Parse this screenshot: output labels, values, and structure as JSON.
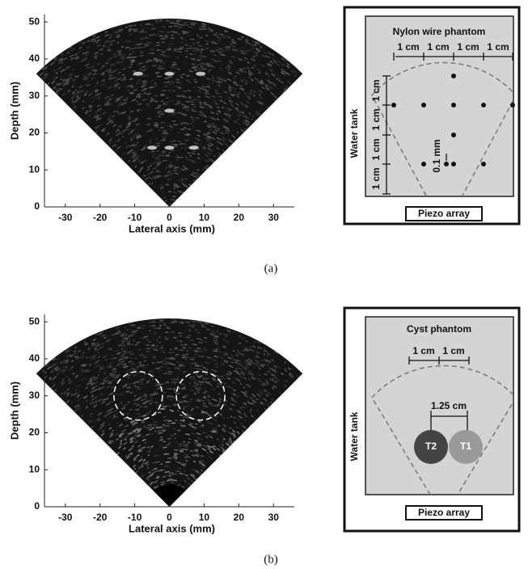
{
  "panels": [
    {
      "caption": "(a)",
      "image": {
        "x_label": "Lateral axis (mm)",
        "y_label": "Depth (mm)",
        "xlim": [
          -36,
          36
        ],
        "ylim": [
          0,
          52
        ],
        "xticks": [
          -30,
          -20,
          -10,
          0,
          10,
          20,
          30
        ],
        "yticks": [
          0,
          10,
          20,
          30,
          40,
          50
        ]
      },
      "diagram": {
        "title": "Nylon wire phantom",
        "horizontal_spacings": [
          "1 cm",
          "1 cm",
          "1 cm",
          "1 cm"
        ],
        "vertical_spacings": [
          "1 cm",
          "1 cm",
          "1 cm",
          "1 cm"
        ],
        "gap_label": "0.1 mm",
        "side_label": "Water tank",
        "array_label": "Piezo array"
      }
    },
    {
      "caption": "(b)",
      "image": {
        "x_label": "Lateral axis (mm)",
        "y_label": "Depth (mm)",
        "xlim": [
          -36,
          36
        ],
        "ylim": [
          0,
          52
        ],
        "xticks": [
          -30,
          -20,
          -10,
          0,
          10,
          20,
          30
        ],
        "yticks": [
          0,
          10,
          20,
          30,
          40,
          50
        ]
      },
      "diagram": {
        "title": "Cyst phantom",
        "horizontal_spacings": [
          "1 cm",
          "1 cm"
        ],
        "span_label": "1.25 cm",
        "targets": [
          "T2",
          "T1"
        ],
        "side_label": "Water tank",
        "array_label": "Piezo array"
      }
    }
  ]
}
